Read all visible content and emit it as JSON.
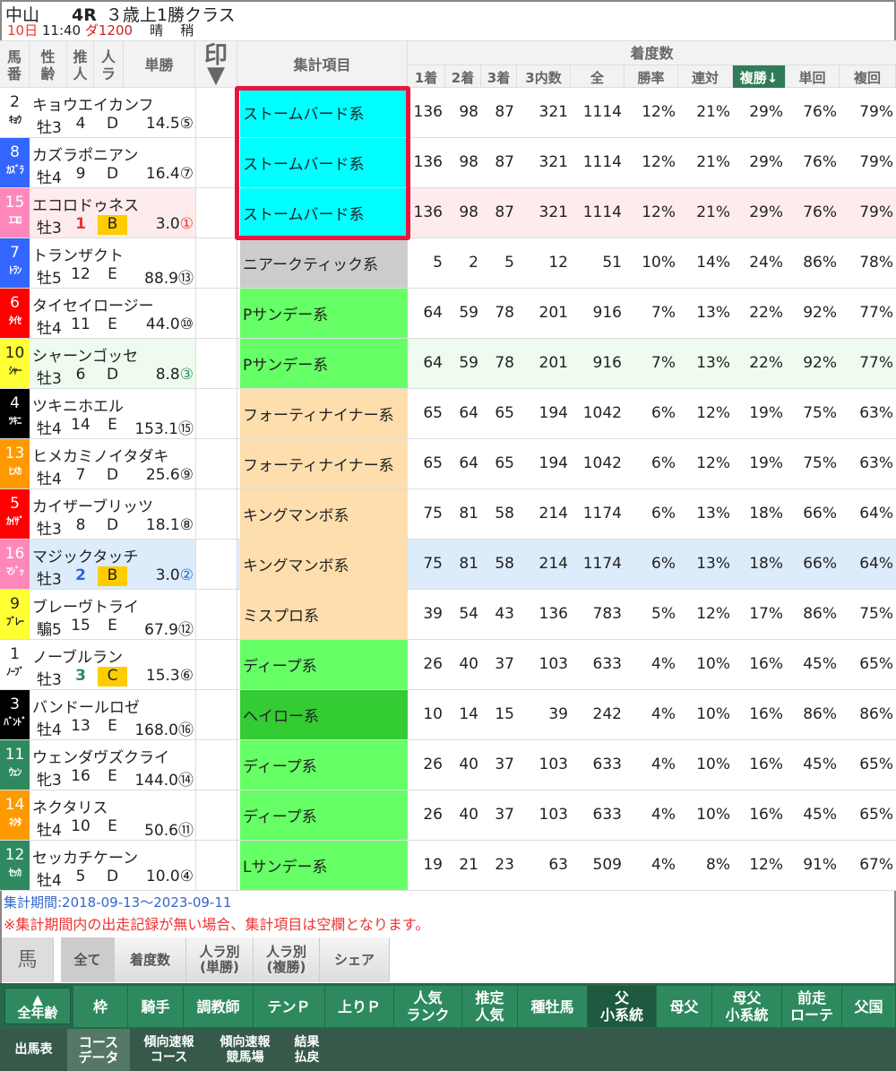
{
  "race": {
    "venue": "中山",
    "race_no": "4R",
    "class": "３歳上1勝クラス",
    "day": "10日",
    "time": "11:40",
    "course": "ダ1200",
    "weather": "晴",
    "going": "稍"
  },
  "header": {
    "umaban": "馬\n番",
    "seirei": "性\n齢",
    "suijin": "推\n人",
    "ninra": "人\nラ",
    "odds": "単勝",
    "mark": "印",
    "category": "集計項目",
    "group": "着度数",
    "cols": [
      "1着",
      "2着",
      "3着",
      "3内数",
      "全",
      "勝率",
      "連対",
      "複勝↓",
      "単回",
      "複回"
    ]
  },
  "colors": {
    "frame": {
      "1": "#ffffff",
      "2": "#000000",
      "3": "#ff0000",
      "4": "#3366ff",
      "5": "#ffff33",
      "6": "#2e8a5e",
      "7": "#ff9900",
      "8": "#ff88bb"
    },
    "cat": {
      "cyan": "#00ffff",
      "gray": "#cccccc",
      "green": "#66ff66",
      "peach": "#ffdead",
      "dgreen": "#33cc33"
    }
  },
  "horses": [
    {
      "no": "2",
      "abbr": "ｷｮｳ",
      "frame": "1",
      "name": "キョウエイカンフ",
      "sex": "牡3",
      "sui": "4",
      "ra": "D",
      "odds": "14.5",
      "pop": "⑤",
      "cat": "ストームバード系",
      "cc": "cyan",
      "v": [
        "136",
        "98",
        "87",
        "321",
        "1114",
        "12%",
        "21%",
        "29%",
        "76%",
        "79%"
      ]
    },
    {
      "no": "8",
      "abbr": "ｶｽﾞﾗ",
      "frame": "4",
      "name": "カズラポニアン",
      "sex": "牡4",
      "sui": "9",
      "ra": "D",
      "odds": "16.4",
      "pop": "⑦",
      "cat": "ストームバード系",
      "cc": "cyan",
      "v": [
        "136",
        "98",
        "87",
        "321",
        "1114",
        "12%",
        "21%",
        "29%",
        "76%",
        "79%"
      ]
    },
    {
      "no": "15",
      "abbr": "ｴｺﾛ",
      "frame": "8",
      "name": "エコロドゥネス",
      "sex": "牡3",
      "sui": "1",
      "ra": "B",
      "odds": "3.0",
      "pop": "①",
      "cat": "ストームバード系",
      "cc": "cyan",
      "bg": "#fdeceb",
      "sc": "#e33",
      "v": [
        "136",
        "98",
        "87",
        "321",
        "1114",
        "12%",
        "21%",
        "29%",
        "76%",
        "79%"
      ]
    },
    {
      "no": "7",
      "abbr": "ﾄﾗﾝ",
      "frame": "4",
      "name": "トランザクト",
      "sex": "牡5",
      "sui": "12",
      "ra": "E",
      "odds": "88.9",
      "pop": "⑬",
      "cat": "ニアークティック系",
      "cc": "gray",
      "v": [
        "5",
        "2",
        "5",
        "12",
        "51",
        "10%",
        "14%",
        "24%",
        "86%",
        "78%"
      ]
    },
    {
      "no": "6",
      "abbr": "ﾀｲｾ",
      "frame": "3",
      "name": "タイセイロージー",
      "sex": "牡4",
      "sui": "11",
      "ra": "E",
      "odds": "44.0",
      "pop": "⑩",
      "cat": "Pサンデー系",
      "cc": "green",
      "v": [
        "64",
        "59",
        "78",
        "201",
        "916",
        "7%",
        "13%",
        "22%",
        "92%",
        "77%"
      ]
    },
    {
      "no": "10",
      "abbr": "ｼｬｰ",
      "frame": "5",
      "name": "シャーンゴッセ",
      "sex": "牡3",
      "sui": "6",
      "ra": "D",
      "odds": "8.8",
      "pop": "③",
      "cat": "Pサンデー系",
      "cc": "green",
      "bg": "#eefbee",
      "pc": "#2e8a5e",
      "v": [
        "64",
        "59",
        "78",
        "201",
        "916",
        "7%",
        "13%",
        "22%",
        "92%",
        "77%"
      ]
    },
    {
      "no": "4",
      "abbr": "ﾂｷﾆ",
      "frame": "2",
      "name": "ツキニホエル",
      "sex": "牡4",
      "sui": "14",
      "ra": "E",
      "odds": "153.1",
      "pop": "⑮",
      "cat": "フォーティナイナー系",
      "cc": "peach",
      "v": [
        "65",
        "64",
        "65",
        "194",
        "1042",
        "6%",
        "12%",
        "19%",
        "75%",
        "63%"
      ]
    },
    {
      "no": "13",
      "abbr": "ﾋﾒｶ",
      "frame": "7",
      "name": "ヒメカミノイタダキ",
      "sex": "牡4",
      "sui": "7",
      "ra": "D",
      "odds": "25.6",
      "pop": "⑨",
      "cat": "フォーティナイナー系",
      "cc": "peach",
      "v": [
        "65",
        "64",
        "65",
        "194",
        "1042",
        "6%",
        "12%",
        "19%",
        "75%",
        "63%"
      ]
    },
    {
      "no": "5",
      "abbr": "ｶｲｻﾞ",
      "frame": "3",
      "name": "カイザーブリッツ",
      "sex": "牡3",
      "sui": "8",
      "ra": "D",
      "odds": "18.1",
      "pop": "⑧",
      "cat": "キングマンボ系",
      "cc": "peach",
      "v": [
        "75",
        "81",
        "58",
        "214",
        "1174",
        "6%",
        "13%",
        "18%",
        "66%",
        "64%"
      ]
    },
    {
      "no": "16",
      "abbr": "ﾏｼﾞｯ",
      "frame": "8",
      "name": "マジックタッチ",
      "sex": "牡3",
      "sui": "2",
      "ra": "B",
      "odds": "3.0",
      "pop": "②",
      "cat": "キングマンボ系",
      "cc": "peach",
      "bg": "#ddecfb",
      "sc": "#2a66dd",
      "v": [
        "75",
        "81",
        "58",
        "214",
        "1174",
        "6%",
        "13%",
        "18%",
        "66%",
        "64%"
      ]
    },
    {
      "no": "9",
      "abbr": "ﾌﾞﾚｰ",
      "frame": "5",
      "name": "ブレーヴトライ",
      "sex": "騸5",
      "sui": "15",
      "ra": "E",
      "odds": "67.9",
      "pop": "⑫",
      "cat": "ミスプロ系",
      "cc": "peach",
      "v": [
        "39",
        "54",
        "43",
        "136",
        "783",
        "5%",
        "12%",
        "17%",
        "86%",
        "75%"
      ]
    },
    {
      "no": "1",
      "abbr": "ﾉｰﾌﾞ",
      "frame": "1",
      "name": "ノーブルラン",
      "sex": "牡3",
      "sui": "3",
      "ra": "C",
      "odds": "15.3",
      "pop": "⑥",
      "cat": "ディープ系",
      "cc": "green",
      "sc": "#2e8a5e",
      "v": [
        "26",
        "40",
        "37",
        "103",
        "633",
        "4%",
        "10%",
        "16%",
        "45%",
        "65%"
      ]
    },
    {
      "no": "3",
      "abbr": "ﾊﾞﾝﾄﾞ",
      "frame": "2",
      "name": "バンドールロゼ",
      "sex": "牡4",
      "sui": "13",
      "ra": "E",
      "odds": "168.0",
      "pop": "⑯",
      "cat": "ヘイロー系",
      "cc": "dgreen",
      "v": [
        "10",
        "14",
        "15",
        "39",
        "242",
        "4%",
        "10%",
        "16%",
        "86%",
        "86%"
      ]
    },
    {
      "no": "11",
      "abbr": "ｳｪﾝ",
      "frame": "6",
      "name": "ウェンダヴズクライ",
      "sex": "牝3",
      "sui": "16",
      "ra": "E",
      "odds": "144.0",
      "pop": "⑭",
      "cat": "ディープ系",
      "cc": "green",
      "v": [
        "26",
        "40",
        "37",
        "103",
        "633",
        "4%",
        "10%",
        "16%",
        "45%",
        "65%"
      ]
    },
    {
      "no": "14",
      "abbr": "ﾈｸﾀ",
      "frame": "7",
      "name": "ネクタリス",
      "sex": "牡4",
      "sui": "10",
      "ra": "E",
      "odds": "50.6",
      "pop": "⑪",
      "cat": "ディープ系",
      "cc": "green",
      "v": [
        "26",
        "40",
        "37",
        "103",
        "633",
        "4%",
        "10%",
        "16%",
        "45%",
        "65%"
      ]
    },
    {
      "no": "12",
      "abbr": "ｾｯｶ",
      "frame": "6",
      "name": "セッカチケーン",
      "sex": "牡4",
      "sui": "5",
      "ra": "D",
      "odds": "10.0",
      "pop": "④",
      "cat": "Lサンデー系",
      "cc": "green",
      "v": [
        "19",
        "21",
        "23",
        "63",
        "509",
        "4%",
        "8%",
        "12%",
        "91%",
        "67%"
      ]
    }
  ],
  "notes": {
    "period": "集計期間:2018-09-13～2023-09-11",
    "warning": "※集計期間内の出走記録が無い場合、集計項目は空欄となります。"
  },
  "tabs": {
    "label": "馬",
    "items": [
      "全て",
      "着度数",
      "人ラ別\n(単勝)",
      "人ラ別\n(複勝)",
      "シェア"
    ],
    "active": 0
  },
  "nav1": {
    "age": "全年齢",
    "items": [
      "枠",
      "騎手",
      "調教師",
      "テンＰ",
      "上りＰ",
      "人気\nランク",
      "推定\n人気",
      "種牡馬",
      "父\n小系統",
      "母父",
      "母父\n小系統",
      "前走\nローテ",
      "父国"
    ],
    "active": 8
  },
  "nav2": {
    "items": [
      "出馬表",
      "コース\nデータ",
      "傾向速報\nコース",
      "傾向速報\n競馬場",
      "結果\n払戻"
    ],
    "active": 1
  }
}
